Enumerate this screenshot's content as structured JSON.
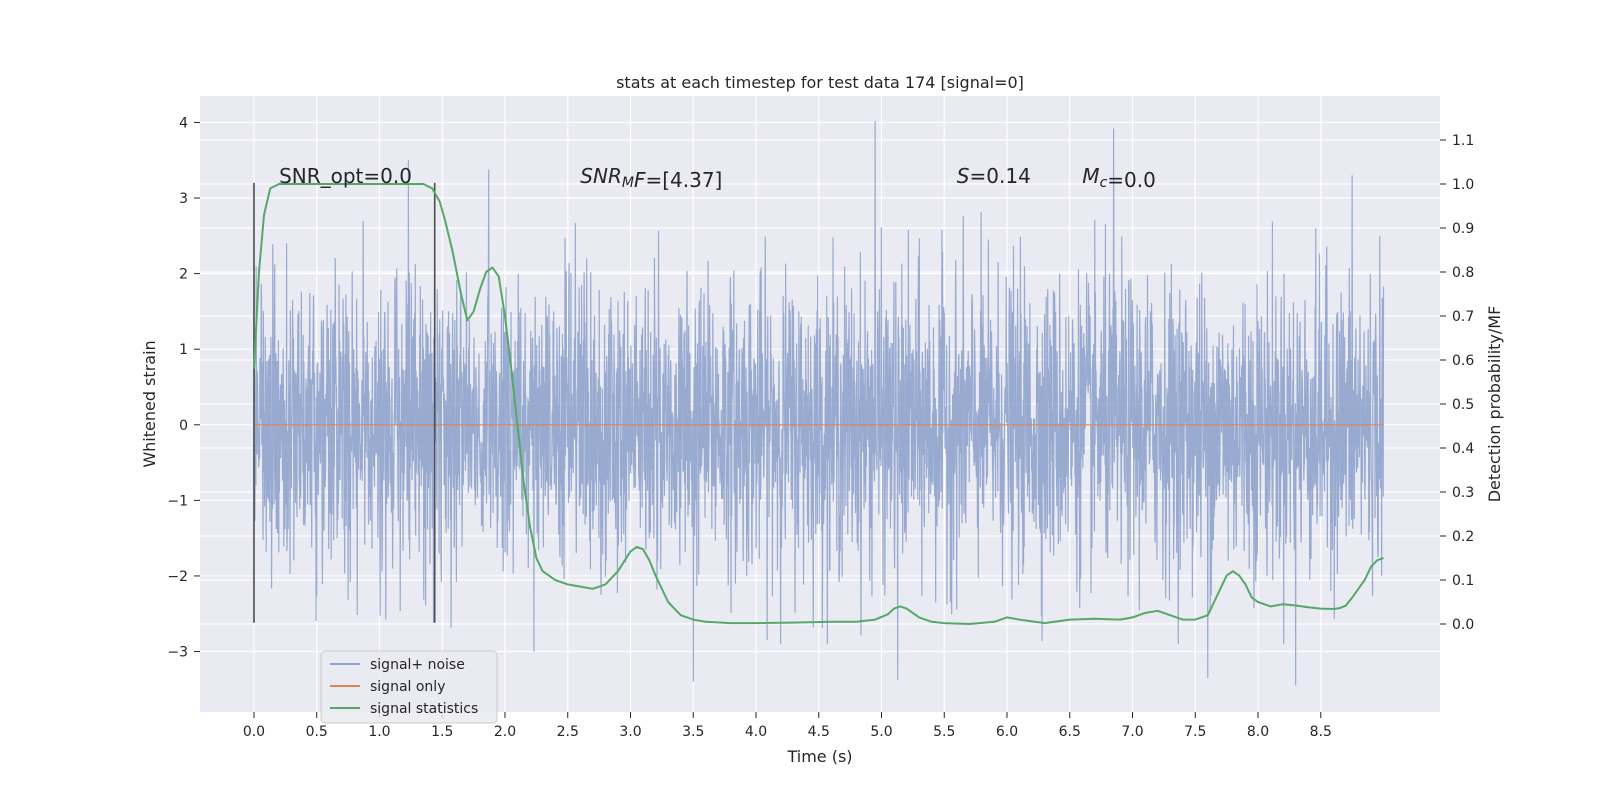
{
  "chart_data": {
    "type": "line",
    "title": "stats at each timestep for test data 174 [signal=0]",
    "xlabel": "Time (s)",
    "ylabel": "Whitened strain",
    "y2label": "Detection probability/MF",
    "xlim": [
      -0.43,
      9.45
    ],
    "ylim": [
      -3.8,
      4.35
    ],
    "y2lim": [
      -0.2,
      1.2
    ],
    "x_ticks": [
      0.0,
      0.5,
      1.0,
      1.5,
      2.0,
      2.5,
      3.0,
      3.5,
      4.0,
      4.5,
      5.0,
      5.5,
      6.0,
      6.5,
      7.0,
      7.5,
      8.0,
      8.5
    ],
    "x_tick_labels": [
      "0.0",
      "0.5",
      "1.0",
      "1.5",
      "2.0",
      "2.5",
      "3.0",
      "3.5",
      "4.0",
      "4.5",
      "5.0",
      "5.5",
      "6.0",
      "6.5",
      "7.0",
      "7.5",
      "8.0",
      "8.5"
    ],
    "y_ticks": [
      -3,
      -2,
      -1,
      0,
      1,
      2,
      3,
      4
    ],
    "y_tick_labels": [
      "−3",
      "−2",
      "−1",
      "0",
      "1",
      "2",
      "3",
      "4"
    ],
    "y2_ticks": [
      0.0,
      0.1,
      0.2,
      0.3,
      0.4,
      0.5,
      0.6,
      0.7,
      0.8,
      0.9,
      1.0,
      1.1
    ],
    "y2_tick_labels": [
      "0.0",
      "0.1",
      "0.2",
      "0.3",
      "0.4",
      "0.5",
      "0.6",
      "0.7",
      "0.8",
      "0.9",
      "1.0",
      "1.1"
    ],
    "grid": true,
    "legend_position": "lower-left",
    "colors": {
      "background": "#eaeaf2",
      "grid": "#ffffff",
      "noise": "#8fa3cc",
      "signal": "#dd8452",
      "stats": "#55a868",
      "window": "#4d4d4d"
    },
    "window_lines": {
      "x": [
        0.0,
        1.44
      ],
      "y_range": [
        -2.62,
        3.2
      ]
    },
    "noise_series": {
      "name": "signal+ noise",
      "x_range": [
        0.0,
        9.0
      ],
      "mean": 0.0,
      "std": 0.95,
      "notable_peaks": [
        {
          "x": 0.0,
          "y": 1.95
        },
        {
          "x": 1.23,
          "y": 3.5
        },
        {
          "x": 1.43,
          "y": 2.42
        },
        {
          "x": 1.43,
          "y": -2.62
        },
        {
          "x": 1.87,
          "y": 3.38
        },
        {
          "x": 2.23,
          "y": -3.0
        },
        {
          "x": 3.5,
          "y": -3.4
        },
        {
          "x": 4.95,
          "y": 4.02
        },
        {
          "x": 5.13,
          "y": -3.38
        },
        {
          "x": 6.85,
          "y": 3.92
        },
        {
          "x": 7.6,
          "y": -3.35
        },
        {
          "x": 8.3,
          "y": -3.45
        },
        {
          "x": 8.75,
          "y": 3.3
        }
      ]
    },
    "signal_series": {
      "name": "signal only",
      "x": [
        0.0,
        9.0
      ],
      "y": [
        0.0,
        0.0
      ]
    },
    "stats_series": {
      "name": "signal statistics",
      "x": [
        0.0,
        0.04,
        0.08,
        0.13,
        0.2,
        0.25,
        0.35,
        0.5,
        0.7,
        0.9,
        1.1,
        1.25,
        1.35,
        1.42,
        1.48,
        1.52,
        1.58,
        1.65,
        1.7,
        1.75,
        1.8,
        1.85,
        1.9,
        1.95,
        2.0,
        2.05,
        2.1,
        2.15,
        2.2,
        2.25,
        2.3,
        2.35,
        2.4,
        2.5,
        2.6,
        2.7,
        2.8,
        2.9,
        3.0,
        3.05,
        3.1,
        3.15,
        3.2,
        3.3,
        3.4,
        3.5,
        3.6,
        3.8,
        4.0,
        4.3,
        4.6,
        4.8,
        4.95,
        5.05,
        5.1,
        5.15,
        5.2,
        5.3,
        5.4,
        5.5,
        5.7,
        5.9,
        6.0,
        6.1,
        6.3,
        6.5,
        6.7,
        6.9,
        7.0,
        7.1,
        7.2,
        7.3,
        7.4,
        7.5,
        7.6,
        7.65,
        7.7,
        7.75,
        7.8,
        7.85,
        7.9,
        7.95,
        8.0,
        8.1,
        8.2,
        8.3,
        8.4,
        8.5,
        8.6,
        8.65,
        8.7,
        8.75,
        8.8,
        8.85,
        8.9,
        8.95,
        9.0
      ],
      "y": [
        0.58,
        0.8,
        0.93,
        0.99,
        1.0,
        1.0,
        1.0,
        1.0,
        1.0,
        1.0,
        1.0,
        1.0,
        1.0,
        0.99,
        0.96,
        0.92,
        0.85,
        0.75,
        0.69,
        0.71,
        0.76,
        0.8,
        0.81,
        0.79,
        0.7,
        0.58,
        0.45,
        0.32,
        0.22,
        0.15,
        0.12,
        0.11,
        0.1,
        0.09,
        0.085,
        0.08,
        0.09,
        0.12,
        0.165,
        0.175,
        0.17,
        0.145,
        0.11,
        0.05,
        0.02,
        0.01,
        0.005,
        0.002,
        0.002,
        0.003,
        0.005,
        0.005,
        0.01,
        0.022,
        0.035,
        0.04,
        0.035,
        0.015,
        0.005,
        0.002,
        0.0,
        0.005,
        0.015,
        0.01,
        0.002,
        0.01,
        0.012,
        0.01,
        0.015,
        0.025,
        0.03,
        0.02,
        0.01,
        0.01,
        0.02,
        0.05,
        0.08,
        0.11,
        0.12,
        0.11,
        0.09,
        0.06,
        0.05,
        0.04,
        0.045,
        0.042,
        0.038,
        0.035,
        0.034,
        0.036,
        0.042,
        0.06,
        0.08,
        0.1,
        0.13,
        0.145,
        0.15
      ]
    },
    "annotations": [
      {
        "x": 0.2,
        "y2": 1.0,
        "html_parts": [
          {
            "t": "SNR_opt=0.0",
            "i": false,
            "sub": false
          }
        ]
      },
      {
        "x": 2.6,
        "y2": 1.0,
        "html_parts": [
          {
            "t": "SNR",
            "i": true,
            "sub": false
          },
          {
            "t": "M",
            "i": true,
            "sub": true
          },
          {
            "t": "F",
            "i": true,
            "sub": false
          },
          {
            "t": "=[4.37]",
            "i": false,
            "sub": false
          }
        ]
      },
      {
        "x": 5.6,
        "y2": 1.0,
        "html_parts": [
          {
            "t": "S",
            "i": true,
            "sub": false
          },
          {
            "t": "=0.14",
            "i": false,
            "sub": false
          }
        ]
      },
      {
        "x": 6.6,
        "y2": 1.0,
        "html_parts": [
          {
            "t": "M",
            "i": true,
            "sub": false
          },
          {
            "t": "c",
            "i": true,
            "sub": true
          },
          {
            "t": "=0.0",
            "i": false,
            "sub": false
          }
        ]
      }
    ],
    "legend": [
      {
        "label": "signal+ noise",
        "color": "#8fa3cc"
      },
      {
        "label": "signal only",
        "color": "#dd8452"
      },
      {
        "label": "signal statistics",
        "color": "#55a868"
      }
    ]
  }
}
